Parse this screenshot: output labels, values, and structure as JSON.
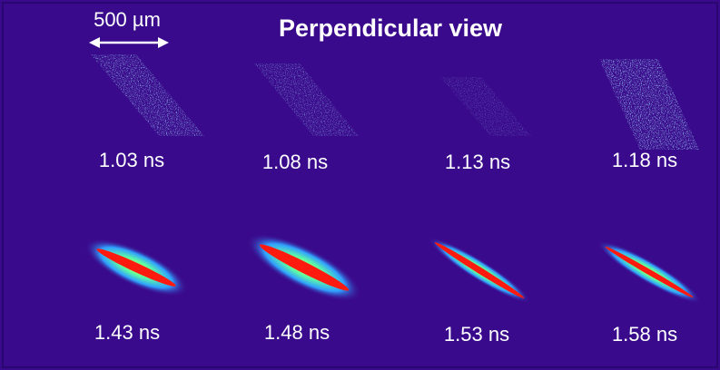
{
  "title": "Perpendicular view",
  "scale_bar": {
    "label": "500 µm"
  },
  "panels": [
    {
      "label": "1.03 ns"
    },
    {
      "label": "1.08 ns"
    },
    {
      "label": "1.13 ns"
    },
    {
      "label": "1.18 ns"
    },
    {
      "label": "1.43 ns"
    },
    {
      "label": "1.48 ns"
    },
    {
      "label": "1.53 ns"
    },
    {
      "label": "1.58 ns"
    }
  ]
}
